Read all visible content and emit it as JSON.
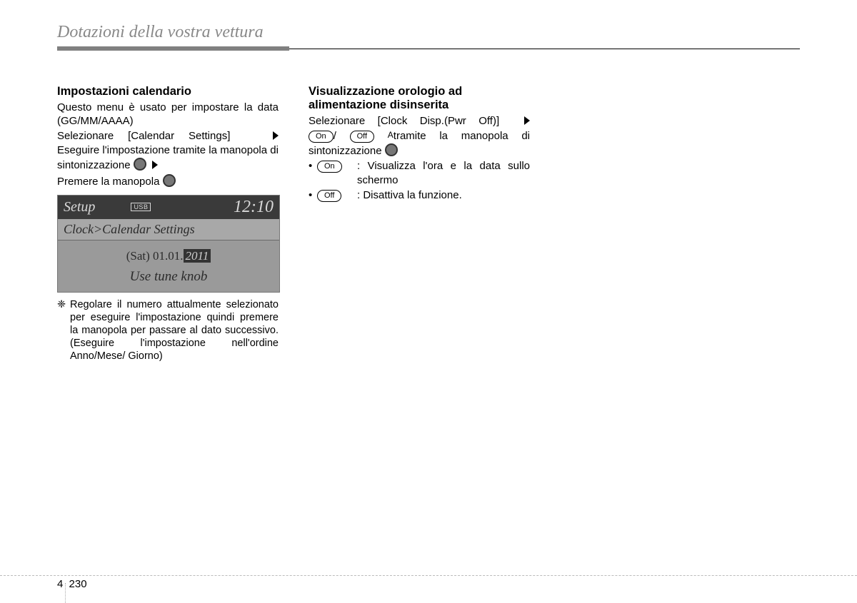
{
  "header": {
    "title": "Dotazioni della vostra vettura"
  },
  "col1": {
    "title": "Impostazioni calendario",
    "p1": "Questo menu è usato per impostare la data (GG/MM/AAAA)",
    "p2a": "Selezionare [Calendar Settings]",
    "p2b": "Eseguire l'impostazione tramite la manopola di sintonizzazione",
    "p2c": "Premere la manopola",
    "screen": {
      "setup": "Setup",
      "usb": "USB",
      "time": "12:10",
      "line1": "Clock>Calendar Settings",
      "date_prefix": "(Sat) 01.01.",
      "year": "2011",
      "line3": "Use tune knob"
    },
    "note": "Regolare il numero attualmente selezionato per eseguire l'impostazione quindi premere la manopola per passare al dato successivo. (Eseguire l'impostazione nell'ordine Anno/Mese/ Giorno)"
  },
  "col2": {
    "title_l1": "Visualizzazione orologio ad",
    "title_l2": "alimentazione disinserita",
    "line1": "Selezionare [Clock Disp.(Pwr Off)]",
    "on": "On",
    "off": "Off",
    "slash": "/",
    "line2_rest": "tramite la manopola di sintonizzazione",
    "bul1": ": Visualizza l'ora e la data sullo schermo",
    "bul2": ": Disattiva la funzione."
  },
  "footer": {
    "chapter": "4",
    "page": "230"
  },
  "glyphs": {
    "note_marker": "❈",
    "A": "A"
  }
}
